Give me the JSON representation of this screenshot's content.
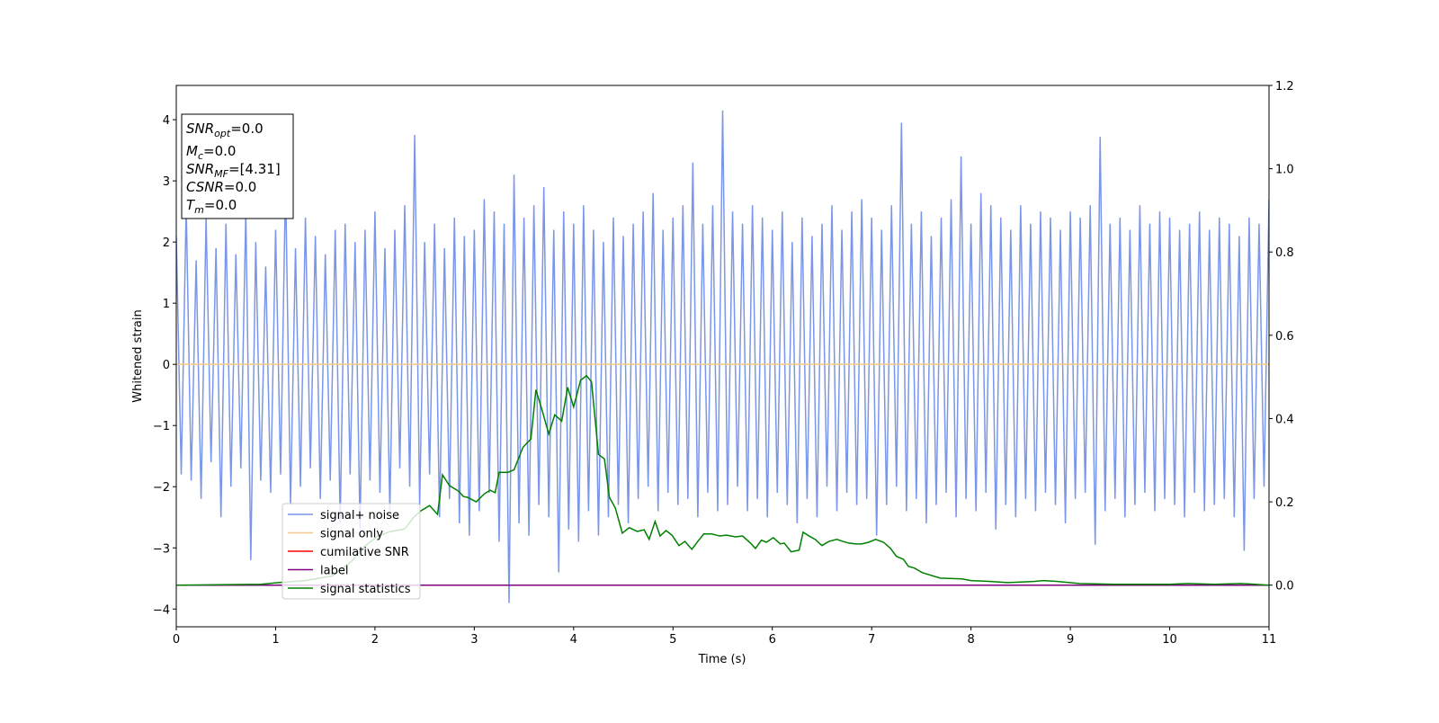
{
  "chart_data": {
    "type": "line",
    "xlabel": "Time (s)",
    "ylabel": "Whitened strain",
    "xlim": [
      0,
      11
    ],
    "xticks": [
      0,
      1,
      2,
      3,
      4,
      5,
      6,
      7,
      8,
      9,
      10,
      11
    ],
    "ylim": [
      -4.29,
      4.56
    ],
    "yticks": [
      {
        "value": -4,
        "label": "−4"
      },
      {
        "value": -3,
        "label": "−3"
      },
      {
        "value": -2,
        "label": "−2"
      },
      {
        "value": -1,
        "label": "−1"
      },
      0,
      1,
      2,
      3,
      4
    ],
    "y2lim": [
      -0.1,
      1.2
    ],
    "y2ticks": [
      {
        "value": 0,
        "label": "0.0"
      },
      {
        "value": 0.2,
        "label": "0.2"
      },
      {
        "value": 0.4,
        "label": "0.4"
      },
      {
        "value": 0.6,
        "label": "0.6"
      },
      {
        "value": 0.8,
        "label": "0.8"
      },
      {
        "value": 1.0,
        "label": "1.0"
      },
      {
        "value": 1.2,
        "label": "1.2"
      }
    ],
    "annotation": [
      {
        "base": "SNR",
        "sub": "opt",
        "rest": "=0.0"
      },
      {
        "base": "M",
        "sub": "c",
        "rest": "=0.0"
      },
      {
        "base": "SNR",
        "sub": "MF",
        "rest": "=[4.31]"
      },
      {
        "base": "CSNR",
        "rest": "=0.0"
      },
      {
        "base": "T",
        "sub": "m",
        "rest": "=0.0"
      }
    ],
    "series": [
      {
        "name": "signal+ noise",
        "color": "#7a96e8",
        "axis": "y",
        "x": [
          0,
          0.05,
          0.1,
          0.15,
          0.2,
          0.25,
          0.3,
          0.35,
          0.4,
          0.45,
          0.5,
          0.55,
          0.6,
          0.65,
          0.7,
          0.75,
          0.8,
          0.85,
          0.9,
          0.95,
          1,
          1.05,
          1.1,
          1.15,
          1.2,
          1.25,
          1.3,
          1.35,
          1.4,
          1.45,
          1.5,
          1.55,
          1.6,
          1.65,
          1.7,
          1.75,
          1.8,
          1.85,
          1.9,
          1.95,
          2,
          2.05,
          2.1,
          2.15,
          2.2,
          2.25,
          2.3,
          2.35,
          2.4,
          2.45,
          2.5,
          2.55,
          2.6,
          2.65,
          2.7,
          2.75,
          2.8,
          2.85,
          2.9,
          2.95,
          3,
          3.05,
          3.1,
          3.15,
          3.2,
          3.25,
          3.3,
          3.35,
          3.4,
          3.45,
          3.5,
          3.55,
          3.6,
          3.65,
          3.7,
          3.75,
          3.8,
          3.85,
          3.9,
          3.95,
          4,
          4.05,
          4.1,
          4.15,
          4.2,
          4.25,
          4.3,
          4.35,
          4.4,
          4.45,
          4.5,
          4.55,
          4.6,
          4.65,
          4.7,
          4.75,
          4.8,
          4.85,
          4.9,
          4.95,
          5,
          5.05,
          5.1,
          5.15,
          5.2,
          5.25,
          5.3,
          5.35,
          5.4,
          5.45,
          5.5,
          5.55,
          5.6,
          5.65,
          5.7,
          5.75,
          5.8,
          5.85,
          5.9,
          5.95,
          6,
          6.05,
          6.1,
          6.15,
          6.2,
          6.25,
          6.3,
          6.35,
          6.4,
          6.45,
          6.5,
          6.55,
          6.6,
          6.65,
          6.7,
          6.75,
          6.8,
          6.85,
          6.9,
          6.95,
          7,
          7.05,
          7.1,
          7.15,
          7.2,
          7.25,
          7.3,
          7.35,
          7.4,
          7.45,
          7.5,
          7.55,
          7.6,
          7.65,
          7.7,
          7.75,
          7.8,
          7.85,
          7.9,
          7.95,
          8,
          8.05,
          8.1,
          8.15,
          8.2,
          8.25,
          8.3,
          8.35,
          8.4,
          8.45,
          8.5,
          8.55,
          8.6,
          8.65,
          8.7,
          8.75,
          8.8,
          8.85,
          8.9,
          8.95,
          9,
          9.05,
          9.1,
          9.15,
          9.2,
          9.25,
          9.3,
          9.35,
          9.4,
          9.45,
          9.5,
          9.55,
          9.6,
          9.65,
          9.7,
          9.75,
          9.8,
          9.85,
          9.9,
          9.95,
          10,
          10.05,
          10.1,
          10.15,
          10.2,
          10.25,
          10.3,
          10.35,
          10.4,
          10.45,
          10.5,
          10.55,
          10.6,
          10.65,
          10.7,
          10.75,
          10.8,
          10.85,
          10.9,
          10.95,
          11
        ],
        "values": [
          2.1,
          -1.8,
          2.6,
          -1.9,
          1.7,
          -2.2,
          2.4,
          -1.6,
          1.9,
          -2.5,
          2.3,
          -2.0,
          1.8,
          -1.7,
          2.5,
          -3.2,
          2.0,
          -1.9,
          1.6,
          -2.1,
          2.2,
          -1.8,
          3.0,
          -2.3,
          1.9,
          -2.0,
          2.4,
          -1.7,
          2.1,
          -2.2,
          1.8,
          -1.9,
          2.2,
          -2.6,
          2.3,
          -1.8,
          2.0,
          -2.7,
          2.2,
          -1.9,
          2.5,
          -2.1,
          1.9,
          -2.4,
          2.2,
          -1.7,
          2.6,
          -2.0,
          3.75,
          -2.3,
          2.0,
          -1.8,
          2.3,
          -2.5,
          1.9,
          -2.2,
          2.4,
          -2.6,
          2.1,
          -2.8,
          2.2,
          -2.4,
          2.7,
          -2.1,
          2.5,
          -2.9,
          2.3,
          -3.9,
          3.1,
          -2.6,
          2.4,
          -2.8,
          2.6,
          -2.3,
          2.9,
          -2.5,
          2.2,
          -3.4,
          2.5,
          -2.7,
          2.3,
          -2.9,
          2.6,
          -2.4,
          2.2,
          -2.8,
          2.0,
          -2.5,
          2.4,
          -2.3,
          2.1,
          -2.6,
          2.3,
          -2.2,
          2.5,
          -2.0,
          2.8,
          -2.4,
          2.2,
          -2.1,
          2.4,
          -2.3,
          2.6,
          -2.2,
          3.3,
          -2.5,
          2.3,
          -2.1,
          2.6,
          -2.4,
          4.15,
          -2.3,
          2.5,
          -2.0,
          2.3,
          -2.4,
          2.6,
          -2.2,
          2.4,
          -2.5,
          2.2,
          -2.1,
          2.5,
          -2.3,
          2.0,
          -2.6,
          2.4,
          -2.2,
          2.1,
          -2.5,
          2.3,
          -2.0,
          2.6,
          -2.4,
          2.2,
          -2.1,
          2.5,
          -2.3,
          2.7,
          -2.2,
          2.4,
          -2.8,
          2.2,
          -2.3,
          2.6,
          -2.0,
          3.95,
          -2.4,
          2.3,
          -2.2,
          2.5,
          -2.6,
          2.1,
          -2.3,
          2.4,
          -2.1,
          2.7,
          -2.5,
          3.4,
          -2.2,
          2.3,
          -2.4,
          2.8,
          -2.1,
          2.6,
          -2.7,
          2.4,
          -2.3,
          2.2,
          -2.5,
          2.6,
          -2.2,
          2.3,
          -2.4,
          2.5,
          -2.1,
          2.4,
          -2.3,
          2.2,
          -2.6,
          2.5,
          -2.2,
          2.4,
          -2.1,
          2.6,
          -2.95,
          3.72,
          -2.4,
          2.3,
          -2.2,
          2.4,
          -2.5,
          2.2,
          -2.3,
          2.6,
          -2.1,
          2.3,
          -2.4,
          2.5,
          -2.2,
          2.4,
          -2.3,
          2.2,
          -2.5,
          2.3,
          -2.1,
          2.5,
          -2.4,
          2.2,
          -2.3,
          2.4,
          -2.2,
          2.3,
          -2.5,
          2.1,
          -3.05,
          2.4,
          -2.2,
          2.3,
          -2.0,
          2.7
        ]
      },
      {
        "name": "signal only",
        "color": "#f2c98a",
        "axis": "y",
        "x": [
          0,
          11
        ],
        "values": [
          0,
          0
        ]
      },
      {
        "name": "cumilative SNR",
        "color": "#ff0000",
        "axis": "y2",
        "x": [
          0,
          11
        ],
        "values": [
          0,
          0
        ]
      },
      {
        "name": "label",
        "color": "#800080",
        "axis": "y2",
        "x": [
          0,
          11
        ],
        "values": [
          0,
          0
        ]
      },
      {
        "name": "signal statistics",
        "color": "#008000",
        "axis": "y2",
        "x": [
          0,
          0.85,
          1.03,
          1.3,
          1.57,
          1.76,
          1.89,
          2.03,
          2.16,
          2.3,
          2.39,
          2.46,
          2.55,
          2.63,
          2.68,
          2.75,
          2.84,
          2.89,
          2.93,
          3.02,
          3.1,
          3.16,
          3.21,
          3.25,
          3.34,
          3.4,
          3.49,
          3.57,
          3.62,
          3.68,
          3.75,
          3.81,
          3.88,
          3.94,
          4.0,
          4.07,
          4.13,
          4.18,
          4.25,
          4.31,
          4.36,
          4.42,
          4.49,
          4.56,
          4.64,
          4.71,
          4.76,
          4.82,
          4.87,
          4.93,
          4.99,
          5.06,
          5.12,
          5.19,
          5.25,
          5.31,
          5.39,
          5.47,
          5.54,
          5.63,
          5.7,
          5.78,
          5.83,
          5.89,
          5.94,
          6.01,
          6.08,
          6.12,
          6.19,
          6.27,
          6.31,
          6.37,
          6.43,
          6.5,
          6.57,
          6.65,
          6.71,
          6.77,
          6.84,
          6.9,
          6.97,
          7.04,
          7.12,
          7.19,
          7.25,
          7.32,
          7.37,
          7.43,
          7.51,
          7.69,
          7.91,
          8.0,
          8.18,
          8.37,
          8.64,
          8.73,
          8.86,
          9.09,
          9.45,
          10.0,
          10.18,
          10.45,
          10.72,
          11.0
        ],
        "values": [
          0,
          0.002,
          0.006,
          0.011,
          0.022,
          0.056,
          0.092,
          0.118,
          0.129,
          0.135,
          0.163,
          0.178,
          0.191,
          0.17,
          0.265,
          0.239,
          0.226,
          0.213,
          0.211,
          0.2,
          0.219,
          0.228,
          0.222,
          0.271,
          0.271,
          0.277,
          0.331,
          0.351,
          0.469,
          0.422,
          0.363,
          0.409,
          0.394,
          0.475,
          0.428,
          0.492,
          0.503,
          0.488,
          0.314,
          0.303,
          0.211,
          0.185,
          0.125,
          0.138,
          0.129,
          0.133,
          0.11,
          0.153,
          0.118,
          0.131,
          0.12,
          0.095,
          0.105,
          0.086,
          0.105,
          0.123,
          0.123,
          0.118,
          0.12,
          0.116,
          0.118,
          0.101,
          0.088,
          0.108,
          0.103,
          0.114,
          0.099,
          0.101,
          0.08,
          0.084,
          0.127,
          0.118,
          0.11,
          0.095,
          0.105,
          0.11,
          0.105,
          0.101,
          0.099,
          0.099,
          0.103,
          0.11,
          0.103,
          0.088,
          0.069,
          0.062,
          0.045,
          0.041,
          0.03,
          0.017,
          0.015,
          0.011,
          0.009,
          0.006,
          0.009,
          0.011,
          0.009,
          0.004,
          0.002,
          0.002,
          0.004,
          0.002,
          0.004,
          0
        ]
      }
    ]
  }
}
